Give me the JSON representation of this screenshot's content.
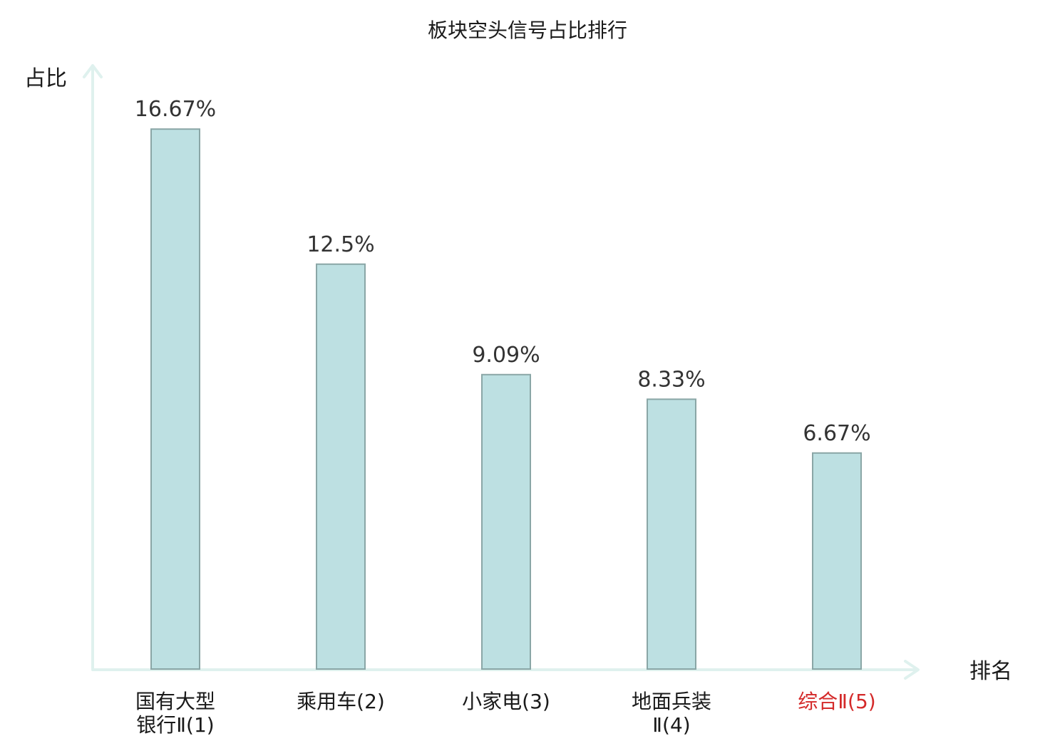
{
  "chart_data": {
    "type": "bar",
    "title": "板块空头信号占比排行",
    "ylabel": "占比",
    "xlabel": "排名",
    "ylim": [
      0,
      18.5
    ],
    "categories": [
      {
        "lines": [
          "国有大型",
          "银行Ⅱ(1)"
        ],
        "highlight": false
      },
      {
        "lines": [
          "乘用车(2)"
        ],
        "highlight": false
      },
      {
        "lines": [
          "小家电(3)"
        ],
        "highlight": false
      },
      {
        "lines": [
          "地面兵装",
          "Ⅱ(4)"
        ],
        "highlight": false
      },
      {
        "lines": [
          "综合Ⅱ(5)"
        ],
        "highlight": true
      }
    ],
    "values": [
      16.67,
      12.5,
      9.09,
      8.33,
      6.67
    ],
    "value_labels": [
      "16.67%",
      "12.5%",
      "9.09%",
      "8.33%",
      "6.67%"
    ],
    "grid": false,
    "legend": "none"
  },
  "colors": {
    "bar_fill": "#bde0e2",
    "bar_stroke": "#8aa6a6",
    "axis": "#dff1ee",
    "highlight_text": "#d42a2a"
  }
}
